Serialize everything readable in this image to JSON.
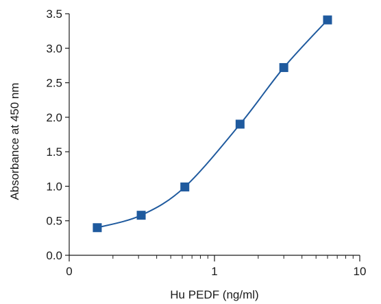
{
  "chart_data": {
    "type": "scatter",
    "title": "",
    "xlabel": "Hu PEDF (ng/ml)",
    "ylabel": "Absorbance at 450 nm",
    "xscale": "log",
    "xlim": [
      0.1,
      10
    ],
    "ylim": [
      0,
      3.5
    ],
    "x_ticks": [
      {
        "value": 0.1,
        "label": "0"
      },
      {
        "value": 1,
        "label": "1"
      },
      {
        "value": 10,
        "label": "10"
      }
    ],
    "x_minor_ticks": [
      0.2,
      0.3,
      0.4,
      0.5,
      0.6,
      0.7,
      0.8,
      0.9,
      2,
      3,
      4,
      5,
      6,
      7,
      8,
      9
    ],
    "y_ticks": [
      {
        "value": 0,
        "label": "0.0"
      },
      {
        "value": 0.5,
        "label": "0.5"
      },
      {
        "value": 1,
        "label": "1.0"
      },
      {
        "value": 1.5,
        "label": "1.5"
      },
      {
        "value": 2,
        "label": "2.0"
      },
      {
        "value": 2.5,
        "label": "2.5"
      },
      {
        "value": 3,
        "label": "3.0"
      },
      {
        "value": 3.5,
        "label": "3.5"
      }
    ],
    "grid": false,
    "legend": "none",
    "marker": "square",
    "fit_curve": true,
    "color": "#1f5a9e",
    "points": [
      {
        "x": 0.156,
        "y": 0.4
      },
      {
        "x": 0.313,
        "y": 0.58
      },
      {
        "x": 0.625,
        "y": 0.99
      },
      {
        "x": 1.5,
        "y": 1.9
      },
      {
        "x": 3.0,
        "y": 2.72
      },
      {
        "x": 6.0,
        "y": 3.41
      }
    ]
  }
}
